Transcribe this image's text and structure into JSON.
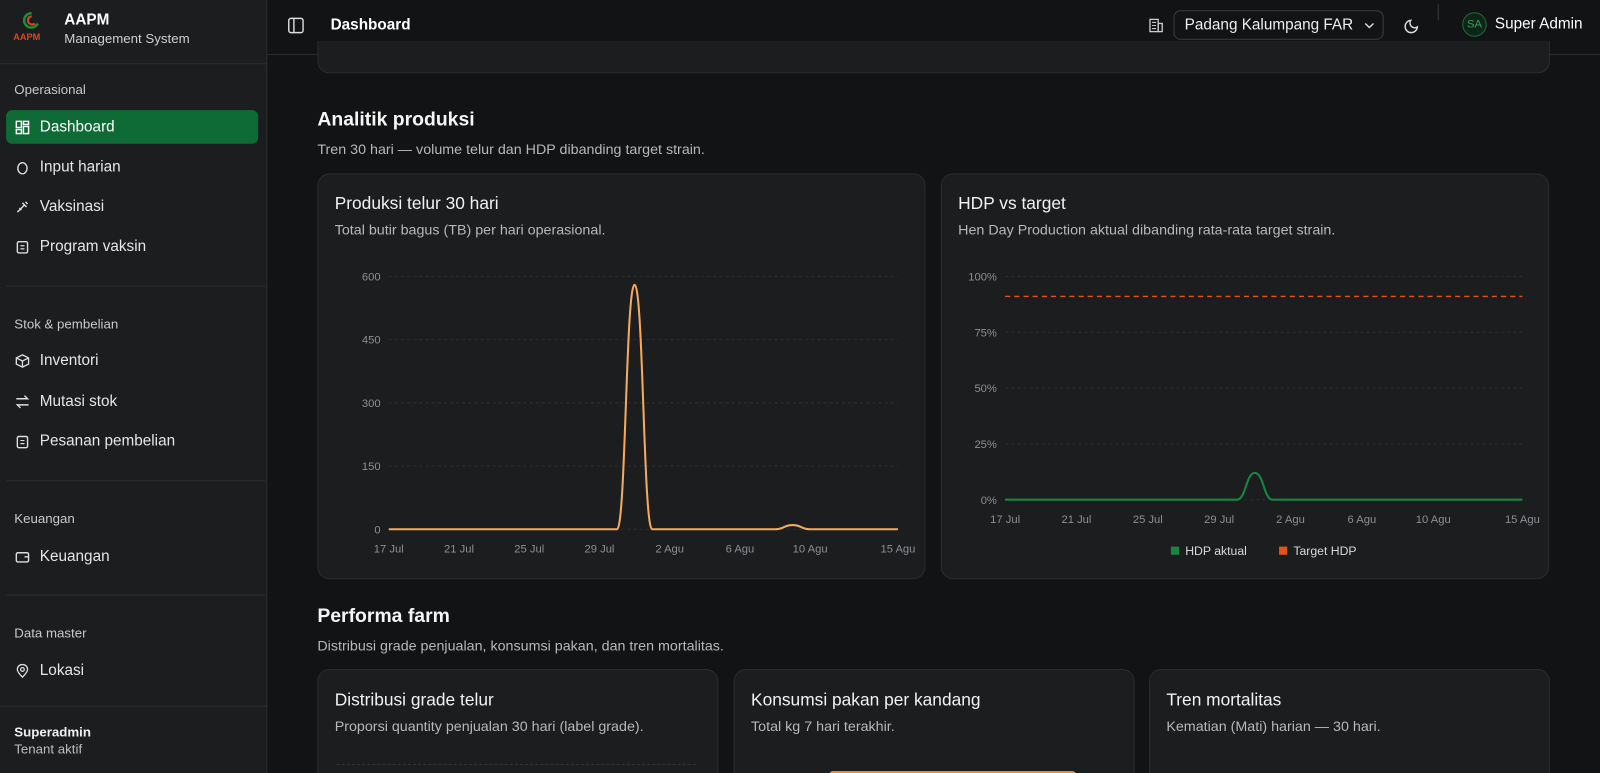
{
  "sidebar": {
    "brand": {
      "logo_text": "AAPM",
      "name": "AAPM",
      "tagline": "Management System"
    },
    "sections": [
      {
        "title": "Operasional",
        "items": [
          "Dashboard",
          "Input harian",
          "Vaksinasi",
          "Program vaksin"
        ]
      },
      {
        "title": "Stok & pembelian",
        "items": [
          "Inventori",
          "Mutasi stok",
          "Pesanan pembelian"
        ]
      },
      {
        "title": "Keuangan",
        "items": [
          "Keuangan"
        ]
      },
      {
        "title": "Data master",
        "items": [
          "Lokasi"
        ]
      }
    ],
    "footer": {
      "user": "Superadmin",
      "status": "Tenant aktif"
    }
  },
  "header": {
    "title": "Dashboard",
    "location": "Padang Kalumpang FAR",
    "avatar": "SA",
    "user": "Super Admin"
  },
  "sections": [
    {
      "title": "Analitik produksi",
      "subtitle": "Tren 30 hari — volume telur dan HDP dibanding target strain."
    },
    {
      "title": "Performa farm",
      "subtitle": "Distribusi grade penjualan, konsumsi pakan, dan tren mortalitas."
    }
  ],
  "cards": [
    {
      "title": "Distribusi grade telur",
      "subtitle": "Proporsi quantity penjualan 30 hari (label grade)."
    },
    {
      "title": "Konsumsi pakan per kandang",
      "subtitle": "Total kg 7 hari terakhir."
    },
    {
      "title": "Tren mortalitas",
      "subtitle": "Kematian (Mati) harian — 30 hari."
    }
  ],
  "chart_data": [
    {
      "type": "line",
      "title": "Produksi telur 30 hari",
      "subtitle": "Total butir bagus (TB) per hari operasional.",
      "categories": [
        "17 Jul",
        null,
        null,
        null,
        "21 Jul",
        null,
        null,
        null,
        "25 Jul",
        null,
        null,
        null,
        "29 Jul",
        null,
        null,
        null,
        "2 Agu",
        null,
        null,
        null,
        "6 Agu",
        null,
        null,
        null,
        "10 Agu",
        null,
        null,
        null,
        null,
        "15 Agu"
      ],
      "values": [
        0,
        0,
        0,
        0,
        0,
        0,
        0,
        0,
        0,
        0,
        0,
        0,
        0,
        0,
        580,
        0,
        0,
        0,
        0,
        0,
        0,
        0,
        0,
        10,
        0,
        0,
        0,
        0,
        0,
        0
      ],
      "color": "#f5a95c",
      "ylim": [
        0,
        600
      ],
      "yticks": [
        0,
        150,
        300,
        450,
        600
      ],
      "grid": true
    },
    {
      "type": "line",
      "title": "HDP vs target",
      "subtitle": "Hen Day Production aktual dibanding rata-rata target strain.",
      "categories": [
        "17 Jul",
        null,
        null,
        null,
        "21 Jul",
        null,
        null,
        null,
        "25 Jul",
        null,
        null,
        null,
        "29 Jul",
        null,
        null,
        null,
        "2 Agu",
        null,
        null,
        null,
        "6 Agu",
        null,
        null,
        null,
        "10 Agu",
        null,
        null,
        null,
        null,
        "15 Agu"
      ],
      "series": [
        {
          "name": "HDP aktual",
          "color": "#16873f",
          "values": [
            0,
            0,
            0,
            0,
            0,
            0,
            0,
            0,
            0,
            0,
            0,
            0,
            0,
            0,
            12,
            0,
            0,
            0,
            0,
            0,
            0,
            0,
            0,
            0,
            0,
            0,
            0,
            0,
            0,
            0
          ]
        },
        {
          "name": "Target HDP",
          "color": "#e5531a",
          "dashed": true,
          "values": [
            91,
            91,
            91,
            91,
            91,
            91,
            91,
            91,
            91,
            91,
            91,
            91,
            91,
            91,
            91,
            91,
            91,
            91,
            91,
            91,
            91,
            91,
            91,
            91,
            91,
            91,
            91,
            91,
            91,
            91
          ]
        }
      ],
      "ylim": [
        0,
        100
      ],
      "yticks": [
        {
          "value": 0,
          "label": "0%"
        },
        {
          "value": 25,
          "label": "25%"
        },
        {
          "value": 50,
          "label": "50%"
        },
        {
          "value": 75,
          "label": "75%"
        },
        {
          "value": 100,
          "label": "100%"
        }
      ],
      "grid": true,
      "legend": "bottom"
    }
  ]
}
